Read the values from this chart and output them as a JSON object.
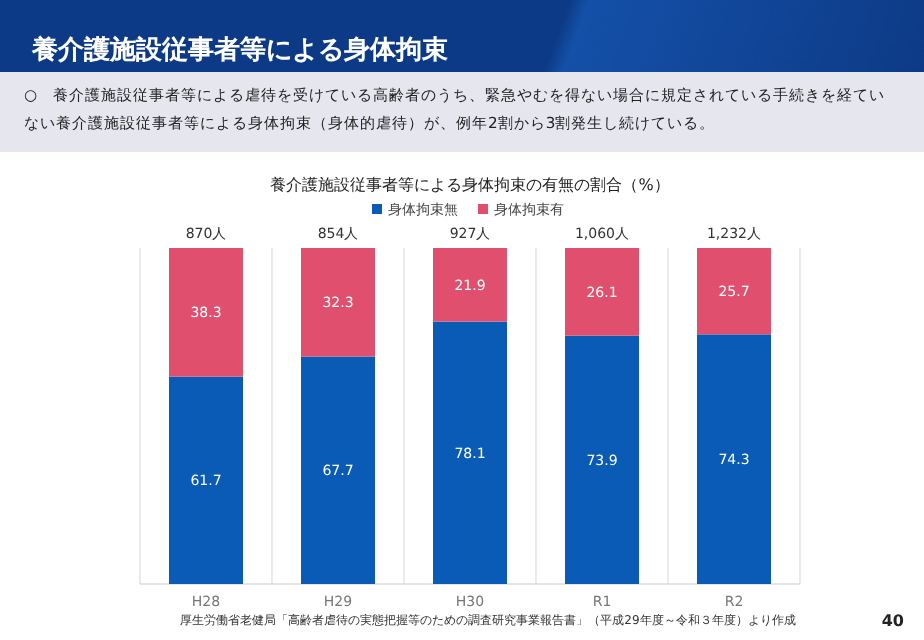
{
  "chart_data": {
    "type": "bar",
    "title": "養介護施設従事者等による身体拘束",
    "subtitle": "○　養介護施設従事者等による虐待を受けている高齢者のうち、緊急やむを得ない場合に規定されている手続きを経ていない養介護施設従事者等による身体拘束（身体的虐待）が、例年2割から3割発生し続けている。",
    "xlabel": null,
    "annotations": [
      "養介護施設従事者等による身体拘束の有無の割合（%）",
      "厚生労働省老健局「高齢者虐待の実態把握等のための調査研究事業報告書」（平成29年度～令和３年度）より作成",
      "40",
      {
        "text": "870人",
        "x": "H28",
        "y": 100
      },
      {
        "text": "854人",
        "x": "H29",
        "y": 100
      },
      {
        "text": "927人",
        "x": "H30",
        "y": 100
      },
      {
        "text": "1,060人",
        "x": "R1",
        "y": 100
      },
      {
        "text": "1,232人",
        "x": "R2",
        "y": 100
      }
    ],
    "categories": [
      "H28",
      "H29",
      "H30",
      "R1",
      "R2"
    ],
    "series": [
      {
        "name": "身体拘束無",
        "color": "#0a5bb5",
        "values": [
          61.7,
          67.7,
          78.1,
          73.9,
          74.3
        ]
      },
      {
        "name": "身体拘束有",
        "color": "#e0506e",
        "values": [
          38.3,
          32.3,
          21.9,
          26.1,
          25.7
        ]
      }
    ],
    "stacked": true,
    "ylim": [
      0,
      100
    ],
    "data_labels": true,
    "legend": "top"
  }
}
